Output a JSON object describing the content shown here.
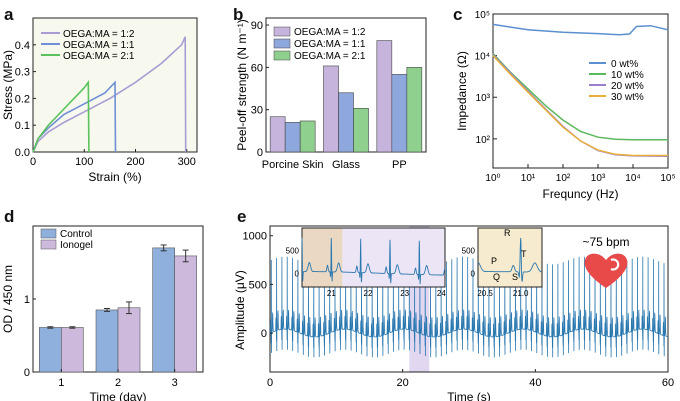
{
  "chart_data": [
    {
      "panel": "a",
      "type": "line",
      "xlabel": "Strain (%)",
      "ylabel": "Stress (MPa)",
      "xlim": [
        0,
        320
      ],
      "ylim": [
        0,
        0.5
      ],
      "xticks": [
        0,
        100,
        200,
        300
      ],
      "yticks": [
        0.0,
        0.1,
        0.2,
        0.3,
        0.4
      ],
      "legend": "top-left",
      "series": [
        {
          "name": "OEGA:MA = 1:2",
          "color": "#a99bd4",
          "x": [
            0,
            10,
            30,
            60,
            100,
            150,
            200,
            250,
            290,
            297,
            298
          ],
          "y": [
            0,
            0.04,
            0.075,
            0.11,
            0.15,
            0.2,
            0.26,
            0.33,
            0.4,
            0.43,
            0.0
          ]
        },
        {
          "name": "OEGA:MA = 1:1",
          "color": "#6f8fd6",
          "x": [
            0,
            10,
            30,
            60,
            100,
            140,
            160,
            161
          ],
          "y": [
            0,
            0.05,
            0.09,
            0.14,
            0.18,
            0.22,
            0.26,
            0.0
          ]
        },
        {
          "name": "OEGA:MA = 2:1",
          "color": "#5cc35c",
          "x": [
            0,
            10,
            30,
            50,
            80,
            100,
            108,
            109
          ],
          "y": [
            0,
            0.05,
            0.1,
            0.14,
            0.2,
            0.24,
            0.26,
            0.0
          ]
        }
      ]
    },
    {
      "panel": "b",
      "type": "bar",
      "ylabel": "Peel-off strength (N m⁻¹)",
      "categories": [
        "Porcine Skin",
        "Glass",
        "PP"
      ],
      "ylim": [
        0,
        95
      ],
      "yticks": [
        0,
        30,
        60,
        90
      ],
      "legend": "top-left",
      "series": [
        {
          "name": "OEGA:MA = 1:2",
          "color": "#c6b4dd",
          "values": [
            25,
            61,
            79
          ]
        },
        {
          "name": "OEGA:MA = 1:1",
          "color": "#8ea7dc",
          "values": [
            21,
            42,
            55
          ]
        },
        {
          "name": "OEGA:MA = 2:1",
          "color": "#8fd08f",
          "values": [
            22,
            31,
            60
          ]
        }
      ]
    },
    {
      "panel": "c",
      "type": "line",
      "xlabel": "Frequncy (Hz)",
      "ylabel": "Impedance (Ω)",
      "xscale": "log",
      "yscale": "log",
      "xlim_exp": [
        0,
        5
      ],
      "ylim_exp": [
        1.3,
        5
      ],
      "xtick_labels": [
        "10⁰",
        "10¹",
        "10²",
        "10³",
        "10⁴",
        "10⁵"
      ],
      "ytick_labels": [
        "10²",
        "10³",
        "10⁴",
        "10⁵"
      ],
      "legend": "right",
      "series": [
        {
          "name": "0 wt%",
          "color": "#5a8fd0",
          "logx": [
            0,
            1,
            2,
            3,
            3.6,
            3.9,
            4.1,
            4.5,
            5
          ],
          "logy": [
            4.75,
            4.62,
            4.56,
            4.53,
            4.5,
            4.52,
            4.7,
            4.72,
            4.62
          ]
        },
        {
          "name": "10 wt%",
          "color": "#5cb85c",
          "logx": [
            0,
            0.5,
            1,
            1.5,
            2,
            2.5,
            3,
            3.5,
            4,
            5
          ],
          "logy": [
            4.05,
            3.6,
            3.2,
            2.8,
            2.45,
            2.18,
            2.04,
            1.99,
            1.98,
            1.98
          ]
        },
        {
          "name": "20 wt%",
          "color": "#9a7fd0",
          "logx": [
            0,
            0.5,
            1,
            1.5,
            2,
            2.5,
            3,
            3.5,
            4,
            5
          ],
          "logy": [
            4.02,
            3.58,
            3.15,
            2.72,
            2.3,
            1.95,
            1.72,
            1.62,
            1.59,
            1.58
          ]
        },
        {
          "name": "30 wt%",
          "color": "#e8b03a",
          "logx": [
            0,
            0.5,
            1,
            1.5,
            2,
            2.5,
            3,
            3.5,
            4,
            5
          ],
          "logy": [
            4.0,
            3.55,
            3.12,
            2.7,
            2.28,
            1.95,
            1.73,
            1.63,
            1.6,
            1.6
          ]
        }
      ]
    },
    {
      "panel": "d",
      "type": "bar",
      "xlabel": "Time (day)",
      "ylabel": "OD / 450 nm",
      "categories": [
        "1",
        "2",
        "3"
      ],
      "ylim": [
        0,
        2.0
      ],
      "yticks": [
        0,
        1
      ],
      "legend": "top-left",
      "series": [
        {
          "name": "Control",
          "color": "#8fb0dc",
          "values": [
            0.61,
            0.85,
            1.7
          ],
          "errors": [
            0.01,
            0.02,
            0.04
          ]
        },
        {
          "name": "Ionogel",
          "color": "#cdb9dc",
          "values": [
            0.61,
            0.88,
            1.59
          ],
          "errors": [
            0.01,
            0.08,
            0.08
          ]
        }
      ]
    },
    {
      "panel": "e",
      "type": "line",
      "xlabel": "Time (s)",
      "ylabel": "Amplitude (μV)",
      "xlim": [
        0,
        60
      ],
      "ylim": [
        -400,
        1100
      ],
      "xticks": [
        0,
        20,
        40,
        60
      ],
      "yticks": [
        0,
        500,
        1000
      ],
      "color": "#2a78b0",
      "heart_rate": "~75 bpm",
      "beats_per_second": 1.25,
      "highlight_range": [
        21,
        24
      ],
      "inset1": {
        "xlim": [
          20.2,
          24.1
        ],
        "xticks": [
          21,
          22,
          23,
          24
        ],
        "yticks": [
          0,
          500
        ],
        "highlight": [
          20.2,
          21.3
        ]
      },
      "inset2": {
        "xlim": [
          20.4,
          21.3
        ],
        "xticks": [
          20.5,
          21.0
        ],
        "yticks": [
          0,
          500
        ],
        "labels": [
          "P",
          "Q",
          "R",
          "S",
          "T"
        ]
      }
    }
  ],
  "panel_letters": [
    "a",
    "b",
    "c",
    "d",
    "e"
  ]
}
